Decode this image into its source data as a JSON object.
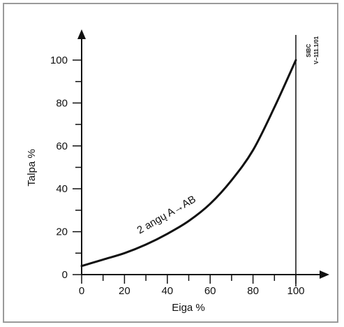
{
  "chart_data": {
    "type": "line",
    "xlabel": "Eiga %",
    "ylabel": "Talpa %",
    "xlim": [
      0,
      110
    ],
    "ylim": [
      0,
      110
    ],
    "x_ticks": [
      0,
      20,
      40,
      60,
      80,
      100
    ],
    "y_ticks": [
      0,
      20,
      40,
      60,
      80,
      100
    ],
    "grid": false,
    "series": [
      {
        "name": "2 angų A→AB",
        "x": [
          0,
          10,
          20,
          30,
          40,
          50,
          60,
          70,
          80,
          90,
          100
        ],
        "y": [
          4,
          7,
          10,
          14,
          19,
          25,
          33,
          44,
          58,
          78,
          100
        ]
      }
    ],
    "annotations": [
      {
        "text": "2 angų  A→AB",
        "x": 40,
        "y": 30
      }
    ]
  },
  "document_code": [
    "SIBC",
    "V–111.1/01"
  ],
  "colors": {
    "line": "#111111",
    "frame": "#9a9a9a"
  }
}
